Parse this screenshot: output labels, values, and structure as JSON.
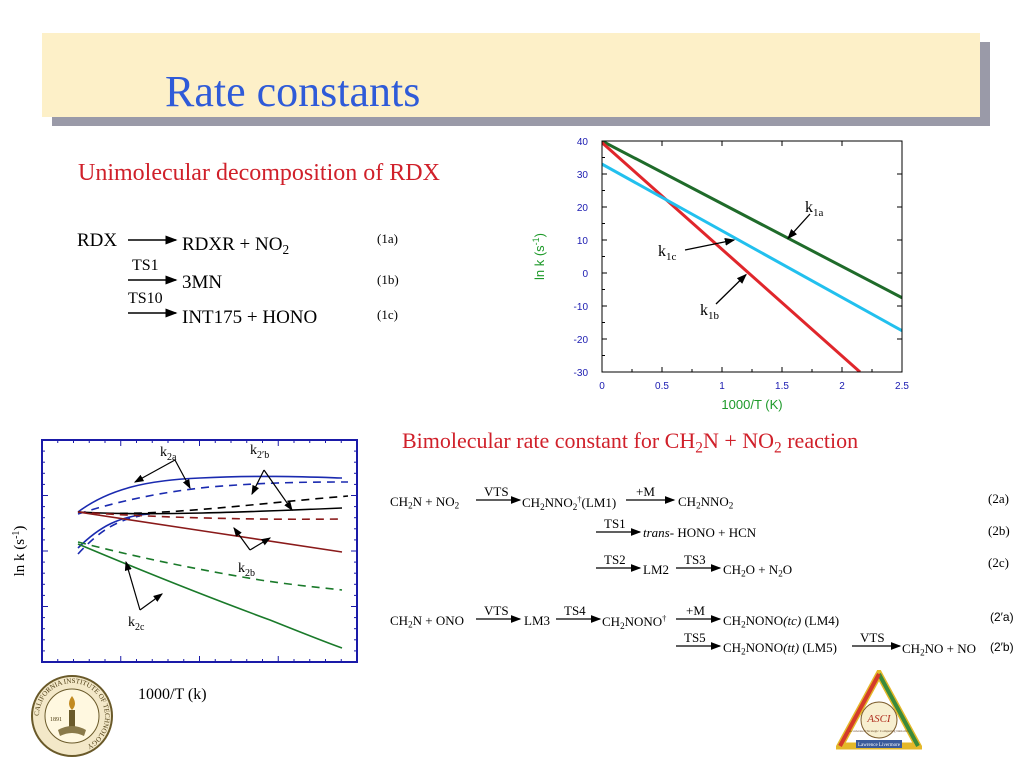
{
  "slide_title": "Rate constants",
  "uni": {
    "heading": "Unimolecular decomposition of RDX",
    "reactant": "RDX",
    "r1a": "RDXR + NO",
    "r1a_sub": "2",
    "tag1a": "(1a)",
    "ts1": "TS1",
    "r1b": "3MN",
    "tag1b": "(1b)",
    "ts10": "TS10",
    "r1c": "INT175 + HONO",
    "tag1c": "(1c)"
  },
  "bi": {
    "heading_pre": "Bimolecular rate constant for CH",
    "heading_sub1": "2",
    "heading_mid": "N + NO",
    "heading_sub2": "2",
    "heading_post": " reaction",
    "r2a_lhs_a": "CH",
    "r2a_lhs_b": "N + NO",
    "s2": "2",
    "vts": "VTS",
    "r2a_mid_a": "CH",
    "r2a_mid_b": "NNO",
    "dagger": "†",
    "lm1": "(LM1)",
    "plusM": "+M",
    "r2a_rhs_a": "CH",
    "r2a_rhs_b": "NNO",
    "tag2a": "(2a)",
    "ts1": "TS1",
    "trans": "trans-",
    "r2b_rhs": "HONO + HCN",
    "tag2b": "(2b)",
    "ts2": "TS2",
    "lm2": "LM2",
    "ts3": "TS3",
    "r2c_a": "CH",
    "r2c_b": "O + N",
    "r2c_c": "O",
    "tag2c": "(2c)",
    "r2p_lhs_a": "CH",
    "r2p_lhs_b": "N + ONO",
    "lm3": "LM3",
    "ts4": "TS4",
    "r2p_mid_a": "CH",
    "r2p_mid_b": "NONO",
    "r2p_rhs_a": "CH",
    "r2p_rhs_b": "NONO",
    "tc": "(tc)",
    "lm4": "(LM4)",
    "tag2pa": "(2′a)",
    "ts5": "TS5",
    "r2pb_a": "CH",
    "r2pb_b": "NONO",
    "tt": "(tt)",
    "lm5": "(LM5)",
    "r2pb_c": "CH",
    "r2pb_d": "NO + NO",
    "tag2pb": "(2′b)"
  },
  "chart_data": [
    {
      "type": "line",
      "xlabel": "1000/T (K)",
      "ylabel": "ln k (s",
      "ylabel_sup": "-1",
      "ylabel_close": ")",
      "xlim": [
        0,
        2.5
      ],
      "ylim": [
        -30,
        40
      ],
      "xticks": [
        "0",
        "0.5",
        "1",
        "1.5",
        "2",
        "2.5"
      ],
      "yticks": [
        "40",
        "30",
        "20",
        "10",
        "0",
        "-10",
        "-20",
        "-30"
      ],
      "series": [
        {
          "name": "k",
          "sub": "1a",
          "color": "#1f6b2a",
          "x": [
            0,
            2.5
          ],
          "y": [
            40,
            -7.5
          ]
        },
        {
          "name": "k",
          "sub": "1b",
          "color": "#e0262b",
          "x": [
            0,
            2.15
          ],
          "y": [
            39.5,
            -30
          ]
        },
        {
          "name": "k",
          "sub": "1c",
          "color": "#22c0ee",
          "x": [
            0,
            2.5
          ],
          "y": [
            33,
            -17.5
          ]
        }
      ]
    },
    {
      "type": "line",
      "xlabel": "1000/T (k)",
      "ylabel": "ln k (s",
      "ylabel_sup": "-1",
      "ylabel_close": ")",
      "labels": [
        {
          "name": "k",
          "sub": "2a"
        },
        {
          "name": "k",
          "sub": "2′b"
        },
        {
          "name": "k",
          "sub": "2b"
        },
        {
          "name": "k",
          "sub": "2c"
        }
      ]
    }
  ],
  "logos": {
    "caltech": "CALIFORNIA INSTITUTE OF TECHNOLOGY",
    "caltech_year": "1891",
    "asci": "ASCI",
    "asci_sub": "Accelerated Strategic Computing Initiative",
    "asci_llnl": "Lawrence Livermore"
  },
  "colors": {
    "title": "#2f5bd8",
    "heading": "#d0202a",
    "title_box": "#fdf0c8",
    "plot_frame": "#1a1aa8"
  }
}
